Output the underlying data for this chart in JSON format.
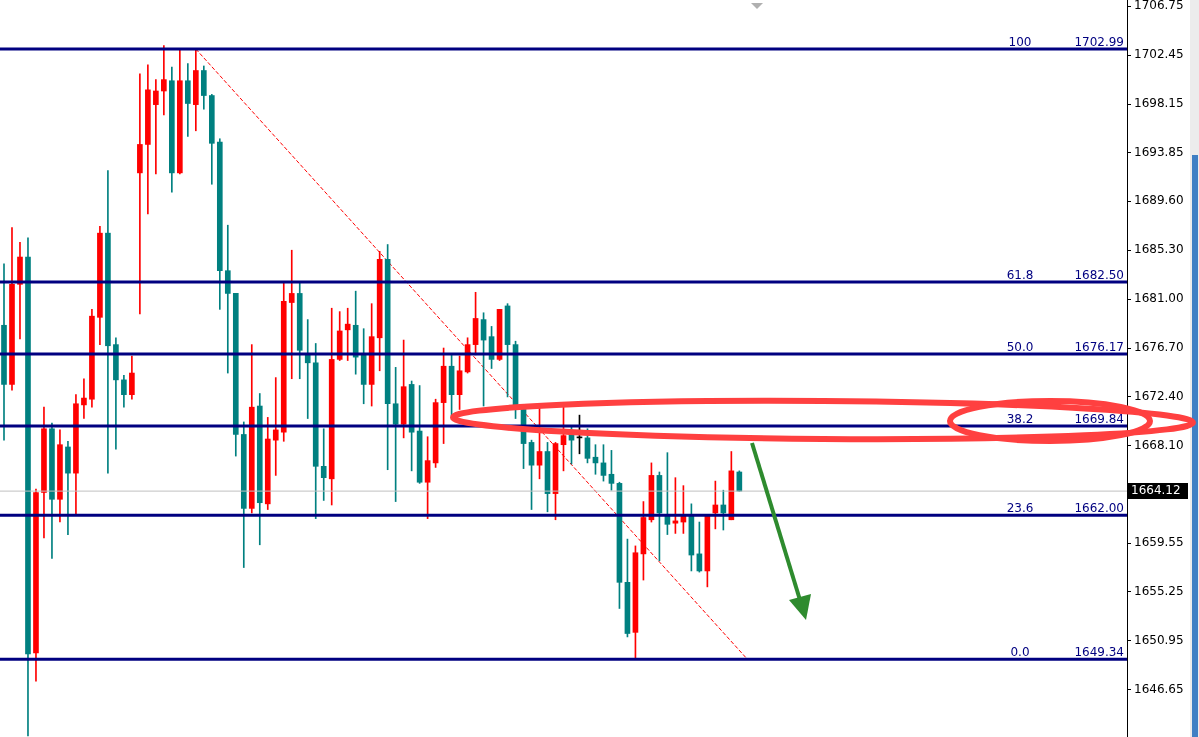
{
  "chart_data": {
    "type": "candlestick",
    "categories": [
      null,
      null,
      null,
      null,
      null,
      null,
      null,
      null,
      null,
      null,
      null,
      null,
      null,
      null,
      null,
      null,
      null,
      null,
      null,
      null,
      null,
      null,
      null,
      null,
      null,
      null,
      null,
      null,
      null,
      null,
      null,
      null,
      null,
      null,
      null,
      null,
      null,
      null,
      null,
      null,
      null,
      null,
      null,
      null,
      null,
      null,
      null,
      null,
      null,
      null,
      null,
      null,
      null,
      null,
      null,
      null,
      null,
      null,
      null,
      null,
      null,
      null,
      null,
      null,
      null,
      null,
      null,
      null,
      null,
      null,
      null,
      null,
      null,
      null,
      null,
      null,
      null,
      null,
      null,
      null,
      null,
      null,
      null,
      null,
      null,
      null,
      null,
      null,
      null,
      null,
      null,
      null,
      null,
      null,
      null,
      null,
      null,
      null,
      null,
      null,
      null,
      null,
      null,
      null,
      null,
      null,
      null,
      null,
      null,
      null,
      null,
      null,
      null,
      null,
      null,
      null,
      null,
      null,
      null,
      null,
      null,
      null,
      null,
      null,
      null,
      null,
      null,
      null,
      null,
      null,
      null,
      null,
      null,
      null,
      null,
      null,
      null,
      null,
      null,
      null,
      null
    ],
    "ohlc": [
      [
        1678.7,
        1684.1,
        1668.6,
        1673.5
      ],
      [
        1673.5,
        1687.3,
        1673.0,
        1682.3
      ],
      [
        1682.3,
        1686.0,
        1677.5,
        1684.7
      ],
      [
        1684.7,
        1686.4,
        1642.6,
        1649.8
      ],
      [
        1649.9,
        1664.3,
        1647.4,
        1664.0
      ],
      [
        1664.0,
        1671.5,
        1660.0,
        1669.6
      ],
      [
        1669.6,
        1670.1,
        1658.2,
        1663.4
      ],
      [
        1663.4,
        1669.5,
        1661.4,
        1668.2
      ],
      [
        1668.0,
        1668.5,
        1660.3,
        1665.7
      ],
      [
        1665.7,
        1672.6,
        1662.1,
        1671.8
      ],
      [
        1671.7,
        1674.0,
        1670.5,
        1672.3
      ],
      [
        1672.2,
        1680.1,
        1671.5,
        1679.5
      ],
      [
        1679.4,
        1687.4,
        1677.0,
        1686.8
      ],
      [
        1686.8,
        1692.3,
        1665.7,
        1676.9
      ],
      [
        1677.0,
        1677.6,
        1667.8,
        1673.9
      ],
      [
        1673.9,
        1674.3,
        1671.5,
        1672.6
      ],
      [
        1672.6,
        1676.0,
        1672.2,
        1674.5
      ],
      [
        1692.1,
        1700.8,
        1679.7,
        1694.6
      ],
      [
        1694.6,
        1701.6,
        1688.5,
        1699.4
      ],
      [
        1698.1,
        1700.3,
        1692.0,
        1699.3
      ],
      [
        1699.3,
        1703.3,
        1697.2,
        1700.3
      ],
      [
        1700.2,
        1701.4,
        1690.4,
        1692.1
      ],
      [
        1692.1,
        1702.9,
        1692.0,
        1700.2
      ],
      [
        1700.2,
        1701.7,
        1695.3,
        1698.2
      ],
      [
        1698.1,
        1703.0,
        1695.8,
        1701.1
      ],
      [
        1701.1,
        1701.5,
        1697.7,
        1698.9
      ],
      [
        1698.9,
        1699.0,
        1691.1,
        1694.7
      ],
      [
        1694.8,
        1695.1,
        1680.1,
        1683.5
      ],
      [
        1683.5,
        1687.5,
        1674.5,
        1681.5
      ],
      [
        1681.5,
        1681.5,
        1667.2,
        1669.1
      ],
      [
        1669.1,
        1670.2,
        1657.4,
        1662.6
      ],
      [
        1662.6,
        1677.0,
        1662.2,
        1671.5
      ],
      [
        1671.6,
        1672.7,
        1659.4,
        1663.1
      ],
      [
        1663.0,
        1670.6,
        1662.5,
        1668.7
      ],
      [
        1668.6,
        1674.1,
        1665.5,
        1669.5
      ],
      [
        1669.3,
        1682.5,
        1668.5,
        1680.8
      ],
      [
        1680.7,
        1685.3,
        1674.0,
        1681.5
      ],
      [
        1681.5,
        1682.4,
        1674.0,
        1676.5
      ],
      [
        1676.1,
        1679.2,
        1670.5,
        1675.4
      ],
      [
        1675.4,
        1677.1,
        1661.7,
        1666.3
      ],
      [
        1666.3,
        1669.6,
        1663.3,
        1665.3
      ],
      [
        1665.2,
        1680.2,
        1662.9,
        1675.7
      ],
      [
        1675.7,
        1679.9,
        1675.6,
        1678.2
      ],
      [
        1678.3,
        1680.2,
        1675.6,
        1678.8
      ],
      [
        1678.7,
        1681.7,
        1674.4,
        1675.9
      ],
      [
        1676.1,
        1678.4,
        1671.8,
        1673.5
      ],
      [
        1673.5,
        1680.6,
        1671.6,
        1677.7
      ],
      [
        1677.6,
        1685.2,
        1674.7,
        1684.5
      ],
      [
        1684.5,
        1685.8,
        1666.0,
        1671.8
      ],
      [
        1671.8,
        1675.0,
        1663.2,
        1670.0
      ],
      [
        1670.0,
        1677.4,
        1668.8,
        1673.3
      ],
      [
        1673.5,
        1673.8,
        1665.9,
        1669.3
      ],
      [
        1669.4,
        1673.4,
        1664.8,
        1664.9
      ],
      [
        1664.9,
        1668.9,
        1661.7,
        1666.8
      ],
      [
        1666.6,
        1672.2,
        1666.2,
        1671.9
      ],
      [
        1671.9,
        1676.7,
        1668.3,
        1675.1
      ],
      [
        1675.1,
        1676.1,
        1670.7,
        1672.6
      ],
      [
        1672.6,
        1676.0,
        1671.3,
        1674.7
      ],
      [
        1674.6,
        1677.6,
        1674.5,
        1677.0
      ],
      [
        1677.0,
        1681.6,
        1676.1,
        1679.3
      ],
      [
        1679.2,
        1679.8,
        1671.6,
        1677.4
      ],
      [
        1677.7,
        1678.6,
        1674.9,
        1675.7
      ],
      [
        1675.7,
        1680.1,
        1675.6,
        1680.1
      ],
      [
        1680.4,
        1680.6,
        1672.4,
        1677.0
      ],
      [
        1677.0,
        1677.3,
        1670.5,
        1671.3
      ],
      [
        1671.3,
        1671.4,
        1666.1,
        1668.3
      ],
      [
        1668.4,
        1668.6,
        1662.5,
        1666.4
      ],
      [
        1666.4,
        1671.4,
        1665.2,
        1667.6
      ],
      [
        1667.6,
        1668.4,
        1662.3,
        1663.9
      ],
      [
        1663.9,
        1668.4,
        1661.6,
        1668.3
      ],
      [
        1668.2,
        1671.6,
        1665.9,
        1669.0
      ],
      [
        1669.2,
        1669.8,
        1666.5,
        1668.6
      ],
      [
        1668.8,
        1670.8,
        1667.4,
        1668.8
      ],
      [
        1668.8,
        1669.6,
        1666.6,
        1667.0
      ],
      [
        1667.1,
        1668.2,
        1665.6,
        1666.6
      ],
      [
        1666.6,
        1668.2,
        1665.0,
        1665.5
      ],
      [
        1665.6,
        1667.7,
        1664.2,
        1664.8
      ],
      [
        1664.8,
        1664.9,
        1653.8,
        1656.1
      ],
      [
        1656.1,
        1659.9,
        1651.3,
        1651.6
      ],
      [
        1651.7,
        1659.3,
        1649.3,
        1658.7
      ],
      [
        1658.6,
        1663.2,
        1656.3,
        1661.8
      ],
      [
        1661.6,
        1666.6,
        1661.4,
        1665.5
      ],
      [
        1665.5,
        1665.8,
        1658.0,
        1662.2
      ],
      [
        1662.0,
        1667.5,
        1660.3,
        1661.2
      ],
      [
        1661.3,
        1665.3,
        1660.4,
        1661.5
      ],
      [
        1661.4,
        1664.6,
        1660.4,
        1661.9
      ],
      [
        1661.9,
        1663.0,
        1657.1,
        1658.5
      ],
      [
        1658.6,
        1661.4,
        1657.0,
        1657.1
      ],
      [
        1657.1,
        1661.9,
        1655.7,
        1661.9
      ],
      [
        1662.2,
        1665.0,
        1660.8,
        1662.9
      ],
      [
        1662.9,
        1664.2,
        1660.7,
        1662.2
      ],
      [
        1661.6,
        1667.6,
        1661.6,
        1665.9
      ],
      [
        1665.8,
        1665.9,
        1664.1,
        1664.12
      ],
      null,
      null,
      null,
      null,
      null,
      null,
      null,
      null,
      null,
      null,
      null,
      null,
      null,
      null,
      null,
      null,
      null,
      null,
      null,
      null,
      null,
      null,
      null,
      null,
      null,
      null,
      null,
      null,
      null,
      null,
      null,
      null,
      null,
      null,
      null,
      null,
      null,
      null,
      null,
      null,
      null,
      null,
      null,
      null,
      null,
      null,
      null,
      null
    ],
    "colors": [
      "#008080",
      "#ff0000",
      "#ff0000",
      "#008080",
      "#ff0000",
      "#ff0000",
      "#008080",
      "#ff0000",
      "#008080",
      "#ff0000",
      "#ff0000",
      "#ff0000",
      "#ff0000",
      "#008080",
      "#008080",
      "#008080",
      "#ff0000",
      "#ff0000",
      "#ff0000",
      "#ff0000",
      "#ff0000",
      "#008080",
      "#ff0000",
      "#008080",
      "#ff0000",
      "#008080",
      "#008080",
      "#008080",
      "#008080",
      "#008080",
      "#008080",
      "#ff0000",
      "#008080",
      "#ff0000",
      "#ff0000",
      "#ff0000",
      "#ff0000",
      "#008080",
      "#008080",
      "#008080",
      "#008080",
      "#ff0000",
      "#ff0000",
      "#ff0000",
      "#008080",
      "#008080",
      "#ff0000",
      "#ff0000",
      "#008080",
      "#008080",
      "#ff0000",
      "#008080",
      "#008080",
      "#ff0000",
      "#ff0000",
      "#ff0000",
      "#008080",
      "#ff0000",
      "#ff0000",
      "#ff0000",
      "#008080",
      "#008080",
      "#ff0000",
      "#008080",
      "#008080",
      "#008080",
      "#008080",
      "#ff0000",
      "#008080",
      "#ff0000",
      "#ff0000",
      "#008080",
      "#000000",
      "#008080",
      "#008080",
      "#008080",
      "#008080",
      "#008080",
      "#008080",
      "#ff0000",
      "#ff0000",
      "#ff0000",
      "#008080",
      "#008080",
      "#ff0000",
      "#ff0000",
      "#008080",
      "#008080",
      "#ff0000",
      "#ff0000",
      "#008080",
      "#ff0000",
      "#008080",
      null,
      null,
      null,
      null,
      null,
      null,
      null,
      null,
      null,
      null,
      null,
      null,
      null,
      null,
      null,
      null,
      null,
      null,
      null,
      null,
      null,
      null,
      null,
      null,
      null,
      null,
      null,
      null,
      null,
      null,
      null,
      null,
      null,
      null,
      null,
      null,
      null,
      null,
      null,
      null,
      null,
      null,
      null,
      null,
      null,
      null,
      null,
      null
    ],
    "series": [
      {
        "type": "line",
        "color": "#ff0000",
        "line_style": "dashed",
        "marker": "none",
        "values": [
          null,
          null,
          null,
          null,
          null,
          null,
          null,
          null,
          null,
          null,
          null,
          null,
          null,
          null,
          null,
          null,
          null,
          null,
          null,
          null,
          null,
          null,
          null,
          null,
          1702.99,
          null,
          null,
          null,
          null,
          null,
          null,
          null,
          null,
          null,
          null,
          null,
          null,
          null,
          null,
          null,
          null,
          null,
          null,
          null,
          null,
          null,
          null,
          null,
          null,
          null,
          null,
          null,
          null,
          null,
          null,
          null,
          null,
          null,
          null,
          null,
          null,
          null,
          null,
          null,
          null,
          null,
          null,
          null,
          null,
          null,
          null,
          null,
          null,
          null,
          null,
          null,
          null,
          null,
          null,
          null,
          null,
          null,
          null,
          null,
          null,
          null,
          null,
          null,
          null,
          null,
          null,
          null,
          null,
          1649.34,
          null,
          null,
          null,
          null,
          null,
          null,
          null,
          null,
          null,
          null,
          null,
          null,
          null,
          null,
          null,
          null,
          null,
          null,
          null,
          null,
          null,
          null,
          null,
          null,
          null,
          null,
          null,
          null,
          null,
          null,
          null,
          null,
          null,
          null,
          null,
          null,
          null,
          null,
          null,
          null,
          null,
          null,
          null,
          null,
          null,
          null,
          null
        ]
      }
    ],
    "ylim": [
      1642.5,
      1707.3
    ],
    "yticks": [
      1646.65,
      1650.95,
      1655.25,
      {
        "value": 1659.55,
        "label": "1659.55"
      },
      {
        "value": 1668.1,
        "label": "1668.10"
      },
      {
        "value": 1672.4,
        "label": "1672.40"
      },
      {
        "value": 1676.7,
        "label": "1676.70"
      },
      {
        "value": 1681,
        "label": "1681.00"
      },
      {
        "value": 1685.3,
        "label": "1685.30"
      },
      {
        "value": 1689.6,
        "label": "1689.60"
      },
      1693.85,
      1698.15,
      1702.45,
      1706.75
    ],
    "tick_labels": "y",
    "legend": false,
    "ref_lines": [
      {
        "axis": "y",
        "value": 1702.99,
        "label": "1702.99",
        "color": "#000080"
      },
      {
        "axis": "y",
        "value": 1682.5,
        "label": "1682.50",
        "color": "#000080"
      },
      {
        "axis": "y",
        "value": 1676.17,
        "label": "1676.17",
        "color": "#000080"
      },
      {
        "axis": "y",
        "value": 1669.84,
        "label": "1669.84",
        "color": "#000080"
      },
      {
        "axis": "y",
        "value": 1662.0,
        "label": "1662.00",
        "color": "#000080"
      },
      {
        "axis": "y",
        "value": 1649.34,
        "label": "1649.34",
        "color": "#000080"
      },
      {
        "axis": "y",
        "value": 1664.12,
        "label": "1664.12",
        "color": "#c0c0c0",
        "line_style": "solid"
      }
    ],
    "annotations": [
      {
        "text": "100",
        "y": 1702.99
      },
      {
        "text": "61.8",
        "y": 1682.5
      },
      {
        "text": "50.0",
        "y": 1676.17
      },
      {
        "text": "38.2",
        "y": 1669.84
      },
      {
        "text": "23.6",
        "y": 1662.0
      },
      {
        "text": "0.0",
        "y": 1649.34
      }
    ]
  }
}
